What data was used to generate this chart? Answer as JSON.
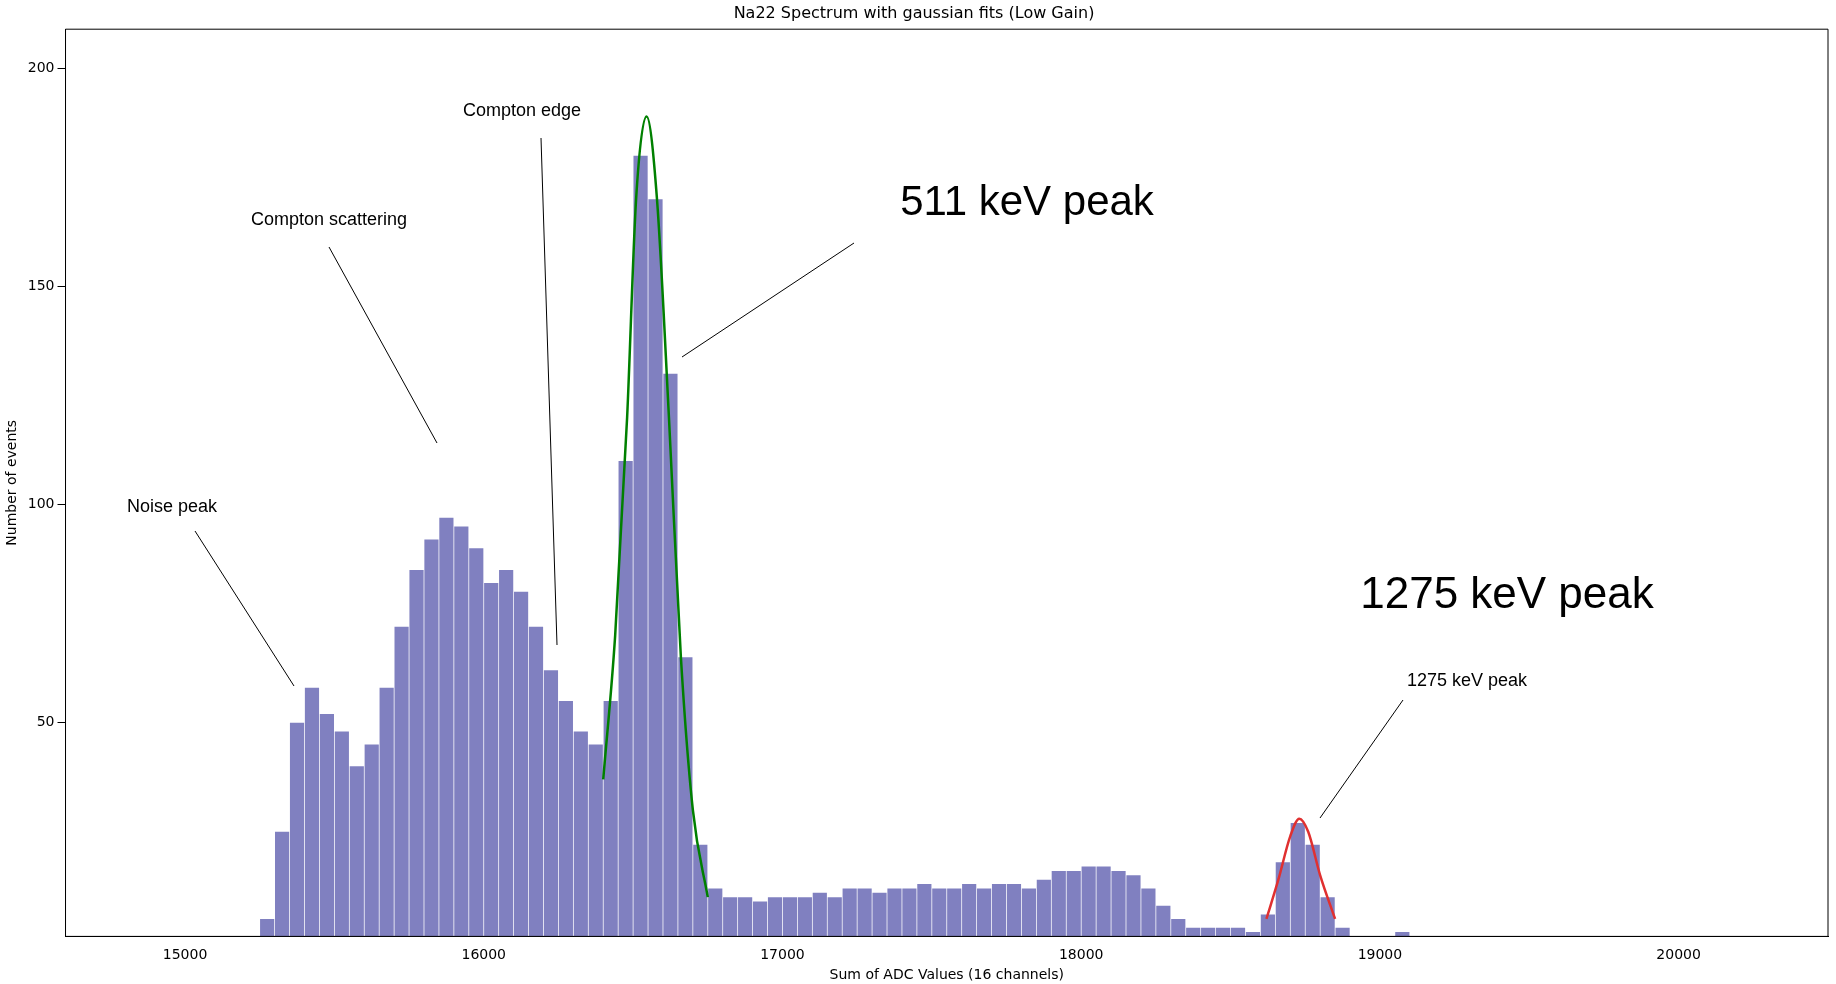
{
  "chart_data": {
    "type": "histogram",
    "title": "Na22 Spectrum with gaussian fits (Low Gain)",
    "xlabel": "Sum of ADC Values (16 channels)",
    "ylabel": "Number of events",
    "bins": [
      15250,
      15300,
      15350,
      15400,
      15450,
      15500,
      15550,
      15600,
      15650,
      15700,
      15750,
      15800,
      15850,
      15900,
      15950,
      16000,
      16050,
      16100,
      16150,
      16200,
      16250,
      16300,
      16350,
      16400,
      16450,
      16500,
      16550,
      16600,
      16650,
      16700,
      16750,
      16800,
      16850,
      16900,
      16950,
      17000,
      17050,
      17100,
      17150,
      17200,
      17250,
      17300,
      17350,
      17400,
      17450,
      17500,
      17550,
      17600,
      17650,
      17700,
      17750,
      17800,
      17850,
      17900,
      17950,
      18000,
      18050,
      18100,
      18150,
      18200,
      18250,
      18300,
      18350,
      18400,
      18450,
      18500,
      18550,
      18600,
      18650,
      18700,
      18750,
      18800,
      18850,
      18900,
      18950,
      19000,
      19050,
      19100
    ],
    "values": [
      5,
      25,
      50,
      58,
      52,
      48,
      40,
      45,
      58,
      72,
      85,
      92,
      97,
      95,
      90,
      82,
      85,
      80,
      72,
      62,
      55,
      48,
      45,
      55,
      110,
      180,
      170,
      130,
      65,
      22,
      12,
      10,
      10,
      9,
      10,
      10,
      10,
      11,
      10,
      12,
      12,
      11,
      12,
      12,
      13,
      12,
      12,
      13,
      12,
      13,
      13,
      12,
      14,
      16,
      16,
      17,
      17,
      16,
      15,
      12,
      8,
      5,
      3,
      3,
      3,
      3,
      2,
      6,
      18,
      27,
      22,
      10,
      3,
      1,
      1,
      1,
      2
    ],
    "color": "#8080c0",
    "series": [
      {
        "type": "line",
        "color": "#008000",
        "x": [
          16400,
          16440,
          16480,
          16510,
          16545,
          16580,
          16620,
          16660,
          16700,
          16750
        ],
        "values": [
          37,
          70,
          120,
          170,
          189,
          170,
          120,
          65,
          30,
          10
        ]
      },
      {
        "type": "line",
        "color": "#e03030",
        "x": [
          18620,
          18660,
          18700,
          18730,
          18760,
          18800,
          18850
        ],
        "values": [
          5,
          14,
          24,
          28,
          25,
          15,
          5
        ]
      }
    ],
    "xlim": [
      14600,
      20500
    ],
    "xticks": [
      15000,
      16000,
      17000,
      18000,
      19000,
      20000
    ],
    "ylim": [
      1,
      209
    ],
    "yticks": [
      50,
      100,
      150,
      200
    ],
    "annotations": [
      "Noise peak",
      "Compton scattering",
      "Compton edge",
      "511 keV peak",
      "1275 keV peak",
      "1275 keV peak"
    ],
    "grid": false,
    "legend": false
  }
}
